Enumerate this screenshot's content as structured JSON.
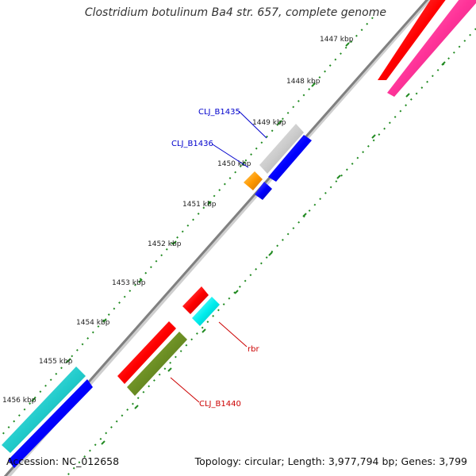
{
  "title": "Clostridium botulinum Ba4 str. 657, complete genome",
  "footer": {
    "accession": "Accession: NC_012658",
    "summary": "Topology: circular; Length: 3,977,794 bp; Genes: 3,799"
  },
  "ticks": [
    "1447 kbp",
    "1448 kbp",
    "1449 kbp",
    "1450 kbp",
    "1451 kbp",
    "1452 kbp",
    "1453 kbp",
    "1454 kbp",
    "1455 kbp",
    "1456 kbp"
  ],
  "gene_labels": [
    {
      "name": "CLJ_B1435",
      "color": "#0000cc"
    },
    {
      "name": "CLJ_B1436",
      "color": "#0000cc"
    },
    {
      "name": "rbr",
      "color": "#cc0000"
    },
    {
      "name": "CLJ_B1440",
      "color": "#cc0000"
    }
  ],
  "feature_colors": {
    "red": "#ff0000",
    "pink": "#ff3399",
    "gray": "#cccccc",
    "blue": "#0000ff",
    "orange": "#ff9900",
    "cyan": "#00e5e5",
    "teal": "#22cccc",
    "olive": "#6b8e23",
    "dots": "#228b22",
    "backbone": "#888888"
  }
}
